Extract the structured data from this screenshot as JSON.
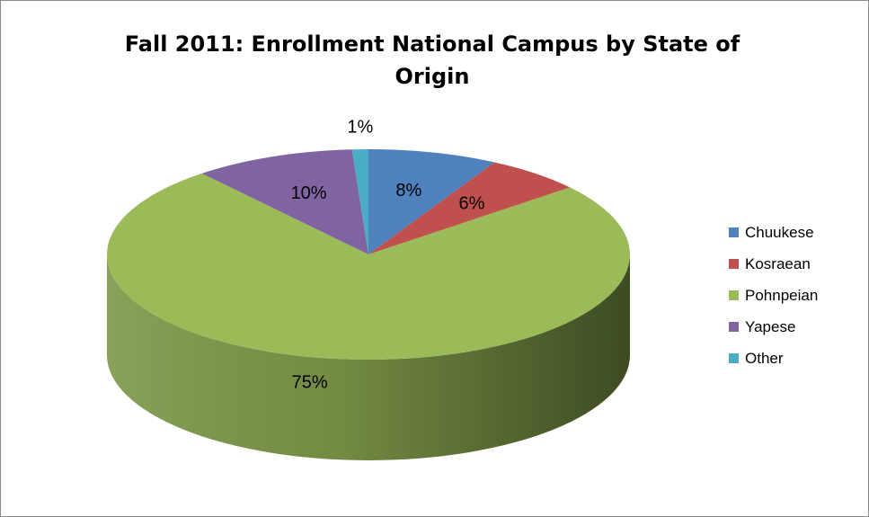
{
  "chart_data": {
    "type": "pie",
    "title": "Fall 2011: Enrollment National Campus by State of Origin",
    "categories": [
      "Chuukese",
      "Kosraean",
      "Pohnpeian",
      "Yapese",
      "Other"
    ],
    "values": [
      8,
      6,
      75,
      10,
      1
    ],
    "labels": [
      "8%",
      "6%",
      "75%",
      "10%",
      "1%"
    ],
    "colors": [
      "#4F81BD",
      "#C0504D",
      "#9BBB59",
      "#8064A2",
      "#4BACC6"
    ],
    "style": "3d",
    "legend_position": "right"
  }
}
